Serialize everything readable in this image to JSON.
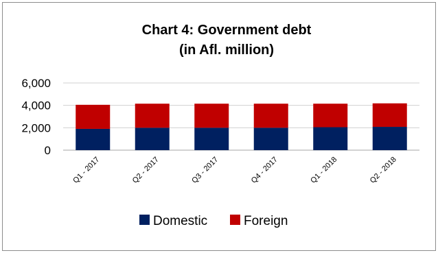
{
  "chart_data": {
    "type": "bar",
    "stacked": true,
    "title": "Chart 4: Government debt",
    "subtitle": "(in Afl. million)",
    "categories": [
      "Q1 - 2017",
      "Q2 - 2017",
      "Q3 - 2017",
      "Q4 - 2017",
      "Q1 - 2018",
      "Q2 - 2018"
    ],
    "series": [
      {
        "name": "Domestic",
        "color": "#002060",
        "values": [
          1900,
          2000,
          2000,
          2000,
          2050,
          2080
        ]
      },
      {
        "name": "Foreign",
        "color": "#c00000",
        "values": [
          2150,
          2150,
          2150,
          2150,
          2100,
          2100
        ]
      }
    ],
    "ylim": [
      0,
      6000
    ],
    "yticks": [
      "0",
      "2,000",
      "4,000",
      "6,000"
    ],
    "ytick_values": [
      0,
      2000,
      4000,
      6000
    ],
    "grid": true,
    "legend_position": "bottom"
  }
}
